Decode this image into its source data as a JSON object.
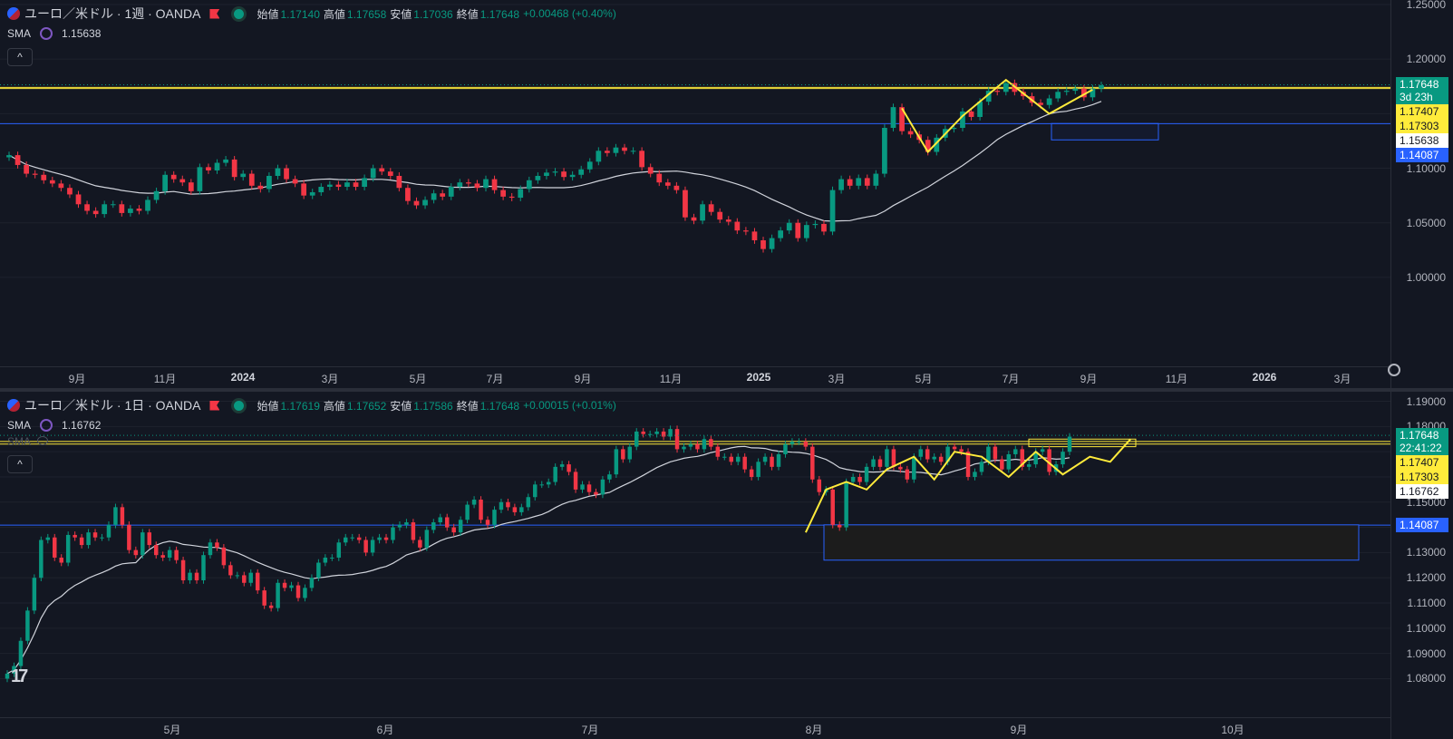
{
  "colors": {
    "up": "#089981",
    "down": "#f23645",
    "sma": "#d1d4dc",
    "yellow": "#ffeb3b",
    "blue": "#2962ff",
    "bg": "#131722"
  },
  "top": {
    "title": "ユーロ／米ドル · 1週 · OANDA",
    "ohlc": {
      "o_label": "始値",
      "o": "1.17140",
      "h_label": "高値",
      "h": "1.17658",
      "l_label": "安値",
      "l": "1.17036",
      "c_label": "終値",
      "c": "1.17648",
      "chg": "+0.00468 (+0.40%)"
    },
    "sma_label": "SMA",
    "sma_value": "1.15638",
    "collapse": "^",
    "yticks": [
      "1.25000",
      "1.20000",
      "1.10000",
      "1.05000",
      "1.00000"
    ],
    "xticks": [
      {
        "t": "9月"
      },
      {
        "t": "11月"
      },
      {
        "t": "2024",
        "bold": true
      },
      {
        "t": "3月"
      },
      {
        "t": "5月"
      },
      {
        "t": "7月"
      },
      {
        "t": "9月"
      },
      {
        "t": "11月"
      },
      {
        "t": "2025",
        "bold": true
      },
      {
        "t": "3月"
      },
      {
        "t": "5月"
      },
      {
        "t": "7月"
      },
      {
        "t": "9月"
      },
      {
        "t": "11月"
      },
      {
        "t": "2026",
        "bold": true
      },
      {
        "t": "3月"
      }
    ],
    "price_labels": [
      {
        "t": "1.17648",
        "sub": "3d 23h",
        "kind": "last"
      },
      {
        "t": "1.17407",
        "kind": "yellow"
      },
      {
        "t": "1.17303",
        "kind": "yellow"
      },
      {
        "t": "1.15638",
        "kind": "white"
      },
      {
        "t": "1.14087",
        "kind": "blue"
      }
    ]
  },
  "bottom": {
    "title": "ユーロ／米ドル · 1日 · OANDA",
    "ohlc": {
      "o_label": "始値",
      "o": "1.17619",
      "h_label": "高値",
      "h": "1.17652",
      "l_label": "安値",
      "l": "1.17586",
      "c_label": "終値",
      "c": "1.17648",
      "chg": "+0.00015 (+0.01%)"
    },
    "sma_label": "SMA",
    "sma_value": "1.16762",
    "sma2_label": "SMA",
    "collapse": "^",
    "yticks": [
      "1.19000",
      "1.18000",
      "1.15000",
      "1.13000",
      "1.12000",
      "1.11000",
      "1.10000",
      "1.09000",
      "1.08000"
    ],
    "xticks": [
      {
        "t": "5月"
      },
      {
        "t": "6月"
      },
      {
        "t": "7月"
      },
      {
        "t": "8月"
      },
      {
        "t": "9月"
      },
      {
        "t": "10月"
      }
    ],
    "price_labels": [
      {
        "t": "1.17648",
        "sub": "22:41:22",
        "kind": "last"
      },
      {
        "t": "1.17407",
        "kind": "yellow"
      },
      {
        "t": "1.17303",
        "kind": "yellow"
      },
      {
        "t": "1.16762",
        "kind": "white"
      },
      {
        "t": "1.14087",
        "kind": "blue"
      }
    ]
  },
  "chart_data": [
    {
      "type": "candlestick",
      "title": "ユーロ／米ドル · 1週 · OANDA",
      "closes": [
        1.112,
        1.103,
        1.095,
        1.094,
        1.089,
        1.086,
        1.082,
        1.076,
        1.067,
        1.061,
        1.058,
        1.067,
        1.067,
        1.059,
        1.063,
        1.061,
        1.071,
        1.079,
        1.094,
        1.09,
        1.087,
        1.079,
        1.101,
        1.098,
        1.105,
        1.108,
        1.092,
        1.095,
        1.084,
        1.081,
        1.093,
        1.1,
        1.09,
        1.086,
        1.075,
        1.078,
        1.083,
        1.085,
        1.083,
        1.087,
        1.083,
        1.091,
        1.1,
        1.097,
        1.093,
        1.082,
        1.07,
        1.066,
        1.071,
        1.077,
        1.074,
        1.083,
        1.087,
        1.086,
        1.082,
        1.09,
        1.08,
        1.074,
        1.073,
        1.081,
        1.089,
        1.093,
        1.096,
        1.097,
        1.092,
        1.094,
        1.099,
        1.106,
        1.116,
        1.114,
        1.119,
        1.116,
        1.116,
        1.101,
        1.095,
        1.087,
        1.084,
        1.08,
        1.055,
        1.052,
        1.067,
        1.06,
        1.053,
        1.051,
        1.043,
        1.042,
        1.034,
        1.026,
        1.036,
        1.043,
        1.05,
        1.036,
        1.048,
        1.049,
        1.042,
        1.08,
        1.09,
        1.084,
        1.091,
        1.084,
        1.095,
        1.137,
        1.156,
        1.134,
        1.131,
        1.126,
        1.115,
        1.128,
        1.136,
        1.137,
        1.152,
        1.147,
        1.161,
        1.171,
        1.17,
        1.178,
        1.17,
        1.166,
        1.16,
        1.158,
        1.164,
        1.17,
        1.171,
        1.173,
        1.165,
        1.173,
        1.176
      ],
      "sma": 1.15638,
      "ylim": [
        0.98,
        1.25
      ]
    },
    {
      "type": "candlestick",
      "title": "ユーロ／米ドル · 1日 · OANDA",
      "closes": [
        1.082,
        1.085,
        1.095,
        1.107,
        1.12,
        1.135,
        1.136,
        1.128,
        1.126,
        1.137,
        1.136,
        1.133,
        1.138,
        1.136,
        1.136,
        1.141,
        1.148,
        1.141,
        1.131,
        1.129,
        1.138,
        1.133,
        1.129,
        1.128,
        1.131,
        1.127,
        1.119,
        1.122,
        1.119,
        1.129,
        1.134,
        1.132,
        1.125,
        1.121,
        1.121,
        1.118,
        1.122,
        1.115,
        1.109,
        1.108,
        1.118,
        1.116,
        1.117,
        1.112,
        1.116,
        1.12,
        1.126,
        1.128,
        1.128,
        1.134,
        1.136,
        1.136,
        1.135,
        1.13,
        1.135,
        1.136,
        1.135,
        1.14,
        1.141,
        1.142,
        1.135,
        1.132,
        1.139,
        1.142,
        1.144,
        1.14,
        1.138,
        1.143,
        1.149,
        1.151,
        1.143,
        1.141,
        1.147,
        1.15,
        1.148,
        1.146,
        1.148,
        1.152,
        1.157,
        1.157,
        1.158,
        1.164,
        1.165,
        1.162,
        1.155,
        1.157,
        1.154,
        1.153,
        1.159,
        1.161,
        1.171,
        1.167,
        1.172,
        1.178,
        1.177,
        1.177,
        1.178,
        1.176,
        1.179,
        1.171,
        1.172,
        1.173,
        1.171,
        1.175,
        1.172,
        1.168,
        1.168,
        1.166,
        1.168,
        1.163,
        1.16,
        1.166,
        1.168,
        1.164,
        1.169,
        1.173,
        1.174,
        1.174,
        1.172,
        1.159,
        1.154,
        1.155,
        1.141,
        1.14,
        1.158,
        1.16,
        1.158,
        1.164,
        1.167,
        1.164,
        1.171,
        1.164,
        1.163,
        1.159,
        1.168,
        1.171,
        1.167,
        1.168,
        1.166,
        1.172,
        1.171,
        1.17,
        1.16,
        1.162,
        1.166,
        1.172,
        1.167,
        1.163,
        1.169,
        1.171,
        1.164,
        1.165,
        1.17,
        1.171,
        1.162,
        1.165,
        1.17,
        1.176
      ],
      "sma": 1.16762,
      "ylim": [
        1.078,
        1.192
      ]
    }
  ]
}
